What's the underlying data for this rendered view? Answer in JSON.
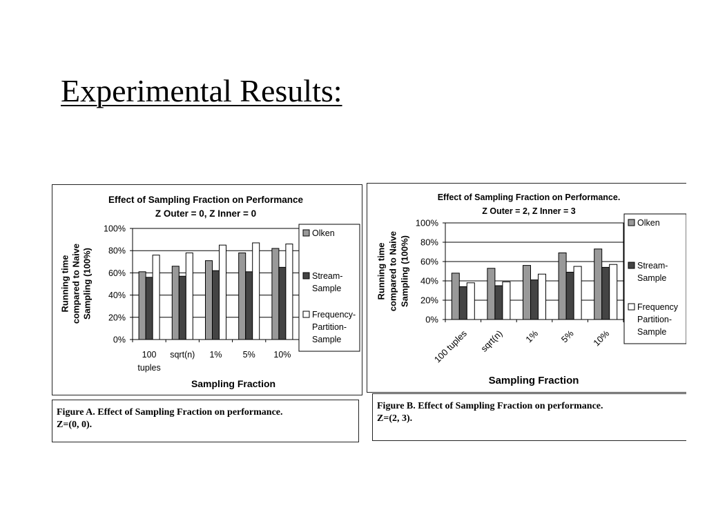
{
  "slide": {
    "title": "Experimental Results:"
  },
  "colors": {
    "olken": "#999999",
    "stream_sample": "#444444",
    "frequency_partition_sample": "#ffffff",
    "outline": "#000000"
  },
  "chart_data": [
    {
      "type": "bar",
      "title": "Effect of Sampling Fraction on Performance",
      "subtitle": "Z Outer = 0, Z Inner = 0",
      "xlabel": "Sampling Fraction",
      "ylabel_lines": [
        "Running time",
        "compared to Naive",
        "Sampling (100%)"
      ],
      "categories": [
        "100 tuples",
        "sqrt(n)",
        "1%",
        "5%",
        "10%"
      ],
      "ylim": [
        0,
        100
      ],
      "yticks": [
        "0%",
        "20%",
        "40%",
        "60%",
        "80%",
        "100%"
      ],
      "grid": true,
      "legend_position": "right",
      "series": [
        {
          "name": "Olken",
          "values": [
            61,
            66,
            71,
            78,
            82
          ]
        },
        {
          "name": "Stream-Sample",
          "values": [
            56,
            57,
            62,
            61,
            65
          ]
        },
        {
          "name": "Frequency-Partition-Sample",
          "values": [
            76,
            78,
            85,
            87,
            86
          ]
        }
      ],
      "legend_lines": [
        [
          "Olken"
        ],
        [
          "Stream-",
          "Sample"
        ],
        [
          "Frequency-",
          "Partition-",
          "Sample"
        ]
      ],
      "caption": "Figure A. Effect of  Sampling Fraction on performance.\nZ=(0, 0)."
    },
    {
      "type": "bar",
      "title": "Effect of Sampling Fraction on Performance.",
      "subtitle": "Z Outer = 2, Z Inner = 3",
      "xlabel": "Sampling Fraction",
      "ylabel_lines": [
        "Running time",
        "compared to Naive",
        "Sampling (100%)"
      ],
      "categories": [
        "100 tuples",
        "sqrt(n)",
        "1%",
        "5%",
        "10%"
      ],
      "ylim": [
        0,
        100
      ],
      "yticks": [
        "0%",
        "20%",
        "40%",
        "60%",
        "80%",
        "100%"
      ],
      "grid": true,
      "legend_position": "right",
      "series": [
        {
          "name": "Olken",
          "values": [
            48,
            53,
            56,
            69,
            73
          ]
        },
        {
          "name": "Stream-Sample",
          "values": [
            34,
            35,
            41,
            49,
            54
          ]
        },
        {
          "name": "Frequency Partition-Sample",
          "values": [
            38,
            39,
            47,
            55,
            57
          ]
        }
      ],
      "legend_lines": [
        [
          "Olken"
        ],
        [
          "Stream-",
          "Sample"
        ],
        [
          "Frequency",
          "Partition-",
          "Sample"
        ]
      ],
      "caption": "Figure B. Effect of  Sampling Fraction on performance.\nZ=(2, 3)."
    }
  ]
}
